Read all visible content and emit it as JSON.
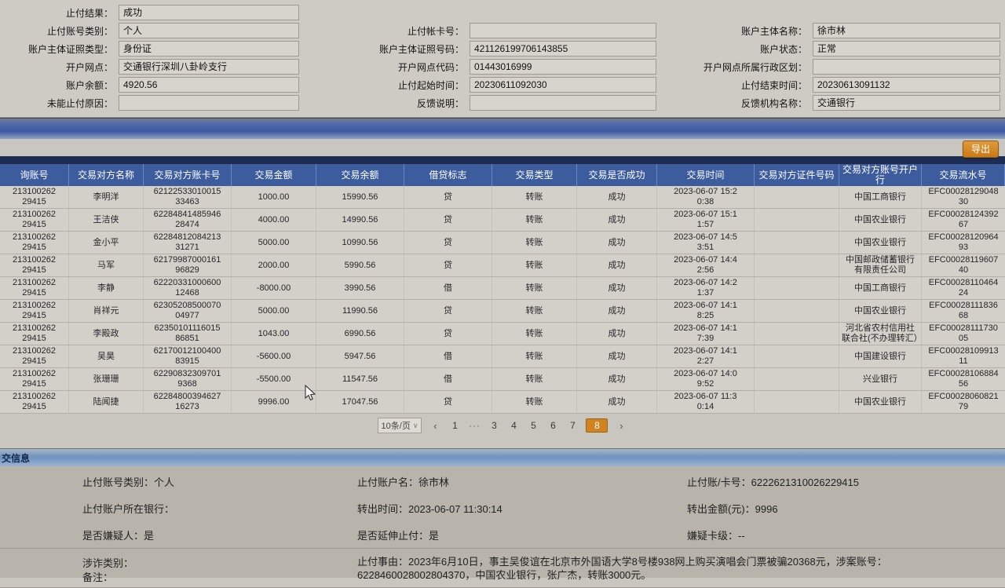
{
  "form": {
    "result_label": "止付结果：",
    "result_value": "成功",
    "acct_type_label": "止付账号类别：",
    "acct_type_value": "个人",
    "card_no_label": "止付帐卡号：",
    "card_no_value": "",
    "subject_name_label": "账户主体名称：",
    "subject_name_value": "徐市林",
    "cert_type_label": "账户主体证照类型：",
    "cert_type_value": "身份证",
    "cert_no_label": "账户主体证照号码：",
    "cert_no_value": "421126199706143855",
    "acct_status_label": "账户状态：",
    "acct_status_value": "正常",
    "branch_label": "开户网点：",
    "branch_value": "交通银行深圳八卦岭支行",
    "branch_code_label": "开户网点代码：",
    "branch_code_value": "01443016999",
    "branch_region_label": "开户网点所属行政区划：",
    "branch_region_value": "",
    "balance_label": "账户余额：",
    "balance_value": "4920.56",
    "start_time_label": "止付起始时间：",
    "start_time_value": "20230611092030",
    "end_time_label": "止付结束时间：",
    "end_time_value": "20230613091132",
    "fail_reason_label": "未能止付原因：",
    "fail_reason_value": "",
    "feedback_label": "反馈说明：",
    "feedback_value": "",
    "feedback_org_label": "反馈机构名称：",
    "feedback_org_value": "交通银行"
  },
  "toolbar": {
    "export_label": "导出"
  },
  "table": {
    "columns": [
      {
        "key": "acct",
        "label": "询账号"
      },
      {
        "key": "name",
        "label": "交易对方名称"
      },
      {
        "key": "card",
        "label": "交易对方账卡号"
      },
      {
        "key": "amount",
        "label": "交易金额"
      },
      {
        "key": "balance",
        "label": "交易余额"
      },
      {
        "key": "flag",
        "label": "借贷标志"
      },
      {
        "key": "type",
        "label": "交易类型"
      },
      {
        "key": "success",
        "label": "交易是否成功"
      },
      {
        "key": "time",
        "label": "交易时间"
      },
      {
        "key": "cert",
        "label": "交易对方证件号码"
      },
      {
        "key": "bank",
        "label": "交易对方账号开户行"
      },
      {
        "key": "serial",
        "label": "交易流水号"
      }
    ],
    "rows": [
      {
        "acct": "213100262\n29415",
        "name": "李明洋",
        "card": "62122533010015\n33463",
        "amount": "1000.00",
        "balance": "15990.56",
        "flag": "贷",
        "type": "转账",
        "success": "成功",
        "time": "2023-06-07 15:2\n0:38",
        "cert": "",
        "bank": "中国工商银行",
        "serial": "EFC00028129048\n30"
      },
      {
        "acct": "213100262\n29415",
        "name": "王洁侠",
        "card": "62284841485946\n28474",
        "amount": "4000.00",
        "balance": "14990.56",
        "flag": "贷",
        "type": "转账",
        "success": "成功",
        "time": "2023-06-07 15:1\n1:57",
        "cert": "",
        "bank": "中国农业银行",
        "serial": "EFC00028124392\n67"
      },
      {
        "acct": "213100262\n29415",
        "name": "金小平",
        "card": "62284812084213\n31271",
        "amount": "5000.00",
        "balance": "10990.56",
        "flag": "贷",
        "type": "转账",
        "success": "成功",
        "time": "2023-06-07 14:5\n3:51",
        "cert": "",
        "bank": "中国农业银行",
        "serial": "EFC00028120964\n93"
      },
      {
        "acct": "213100262\n29415",
        "name": "马军",
        "card": "62179987000161\n96829",
        "amount": "2000.00",
        "balance": "5990.56",
        "flag": "贷",
        "type": "转账",
        "success": "成功",
        "time": "2023-06-07 14:4\n2:56",
        "cert": "",
        "bank": "中国邮政储蓄银行有限责任公司",
        "serial": "EFC00028119607\n40"
      },
      {
        "acct": "213100262\n29415",
        "name": "李静",
        "card": "62220331000600\n12468",
        "amount": "-8000.00",
        "balance": "3990.56",
        "flag": "借",
        "type": "转账",
        "success": "成功",
        "time": "2023-06-07 14:2\n1:37",
        "cert": "",
        "bank": "中国工商银行",
        "serial": "EFC00028110464\n24"
      },
      {
        "acct": "213100262\n29415",
        "name": "肖祥元",
        "card": "62305208500070\n04977",
        "amount": "5000.00",
        "balance": "11990.56",
        "flag": "贷",
        "type": "转账",
        "success": "成功",
        "time": "2023-06-07 14:1\n8:25",
        "cert": "",
        "bank": "中国农业银行",
        "serial": "EFC00028111836\n68"
      },
      {
        "acct": "213100262\n29415",
        "name": "李殿政",
        "card": "62350101116015\n86851",
        "amount": "1043.00",
        "balance": "6990.56",
        "flag": "贷",
        "type": "转账",
        "success": "成功",
        "time": "2023-06-07 14:1\n7:39",
        "cert": "",
        "bank": "河北省农村信用社联合社(不办理转汇）",
        "serial": "EFC00028111730\n05"
      },
      {
        "acct": "213100262\n29415",
        "name": "吴昊",
        "card": "62170012100400\n83915",
        "amount": "-5600.00",
        "balance": "5947.56",
        "flag": "借",
        "type": "转账",
        "success": "成功",
        "time": "2023-06-07 14:1\n2:27",
        "cert": "",
        "bank": "中国建设银行",
        "serial": "EFC00028109913\n11"
      },
      {
        "acct": "213100262\n29415",
        "name": "张珊珊",
        "card": "62290832309701\n9368",
        "amount": "-5500.00",
        "balance": "11547.56",
        "flag": "借",
        "type": "转账",
        "success": "成功",
        "time": "2023-06-07 14:0\n9:52",
        "cert": "",
        "bank": "兴业银行",
        "serial": "EFC00028106884\n56"
      },
      {
        "acct": "213100262\n29415",
        "name": "陆闻捷",
        "card": "62284800394627\n16273",
        "amount": "9996.00",
        "balance": "17047.56",
        "flag": "贷",
        "type": "转账",
        "success": "成功",
        "time": "2023-06-07 11:3\n0:14",
        "cert": "",
        "bank": "中国农业银行",
        "serial": "EFC00028060821\n79"
      }
    ]
  },
  "pagination": {
    "page_size": "10条/页",
    "prev": "‹",
    "next": "›",
    "pages": [
      "1",
      "···",
      "3",
      "4",
      "5",
      "6",
      "7",
      "8"
    ],
    "active_page": "8"
  },
  "bottom": {
    "header": "交信息",
    "r1c1_label": "止付账号类别：",
    "r1c1_value": "个人",
    "r1c2_label": "止付账户名：",
    "r1c2_value": "徐市林",
    "r1c3_label": "止付账/卡号：",
    "r1c3_value": "6222621310026229415",
    "r2c1_label": "止付账户所在银行：",
    "r2c1_value": "",
    "r2c2_label": "转出时间：",
    "r2c2_value": "2023-06-07 11:30:14",
    "r2c3_label": "转出金额(元)：",
    "r2c3_value": "9996",
    "r3c1_label": "是否嫌疑人：",
    "r3c1_value": "是",
    "r3c2_label": "是否延伸止付：",
    "r3c2_value": "是",
    "r3c3_label": "嫌疑卡级：",
    "r3c3_value": "--",
    "r4c1_label": "涉诈类别：",
    "r4c1_value": "",
    "r4c2_label": "止付事由：",
    "r4c2_value": "2023年6月10日，事主吴俊谊在北京市外国语大学8号楼938网上购买演唱会门票被骗20368元，涉案账号：6228460028002804370，中国农业银行，张广杰，转账3000元。",
    "note_label": "备注："
  },
  "colors": {
    "accent_orange": "#d08420",
    "header_blue": "#3c5c9e",
    "navy_strip": "#1c2c52"
  }
}
